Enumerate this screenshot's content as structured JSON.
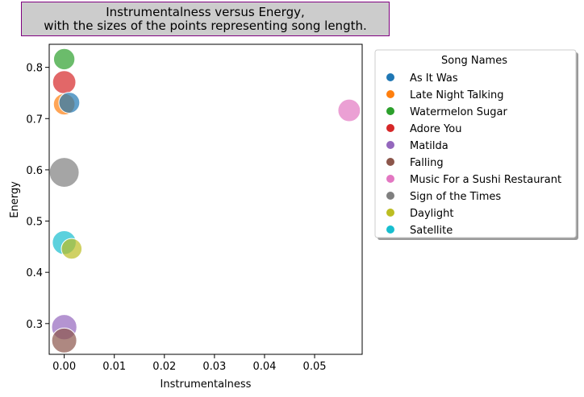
{
  "chart_data": {
    "type": "scatter",
    "title_lines": [
      "Instrumentalness versus Energy,",
      "with the sizes of the points representing song length."
    ],
    "xlabel": "Instrumentalness",
    "ylabel": "Energy",
    "xlim": [
      -0.003,
      0.0595
    ],
    "ylim": [
      0.24,
      0.845
    ],
    "xticks": [
      0.0,
      0.01,
      0.02,
      0.03,
      0.04,
      0.05
    ],
    "xtick_labels": [
      "0.00",
      "0.01",
      "0.02",
      "0.03",
      "0.04",
      "0.05"
    ],
    "yticks": [
      0.3,
      0.4,
      0.5,
      0.6,
      0.7,
      0.8
    ],
    "ytick_labels": [
      "0.3",
      "0.4",
      "0.5",
      "0.6",
      "0.7",
      "0.8"
    ],
    "grid": false,
    "legend": {
      "title": "Song Names",
      "placement": "outside-right"
    },
    "series": [
      {
        "name": "As It Was",
        "color": "#1f77b4",
        "points": [
          {
            "x": 0.00101,
            "y": 0.731,
            "size": 167
          }
        ]
      },
      {
        "name": "Late Night Talking",
        "color": "#ff7f0e",
        "points": [
          {
            "x": 0.0,
            "y": 0.728,
            "size": 178
          }
        ]
      },
      {
        "name": "Watermelon Sugar",
        "color": "#2ca02c",
        "points": [
          {
            "x": 0.0,
            "y": 0.816,
            "size": 174
          }
        ]
      },
      {
        "name": "Adore You",
        "color": "#d62728",
        "points": [
          {
            "x": 0.0,
            "y": 0.771,
            "size": 207
          }
        ]
      },
      {
        "name": "Matilda",
        "color": "#9467bd",
        "points": [
          {
            "x": 0.0,
            "y": 0.293,
            "size": 245
          }
        ]
      },
      {
        "name": "Falling",
        "color": "#8c564b",
        "points": [
          {
            "x": 0.0,
            "y": 0.267,
            "size": 240
          }
        ]
      },
      {
        "name": "Music For a Sushi Restaurant",
        "color": "#e377c2",
        "points": [
          {
            "x": 0.0569,
            "y": 0.716,
            "size": 194
          }
        ]
      },
      {
        "name": "Sign of the Times",
        "color": "#7f7f7f",
        "points": [
          {
            "x": 0.0,
            "y": 0.595,
            "size": 341
          }
        ]
      },
      {
        "name": "Daylight",
        "color": "#bcbd22",
        "points": [
          {
            "x": 0.00148,
            "y": 0.446,
            "size": 164
          }
        ]
      },
      {
        "name": "Satellite",
        "color": "#17becf",
        "points": [
          {
            "x": 0.0,
            "y": 0.458,
            "size": 218
          }
        ]
      }
    ]
  }
}
